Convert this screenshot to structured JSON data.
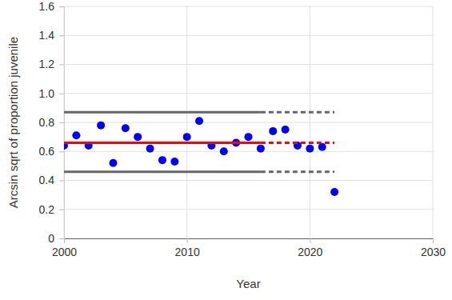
{
  "chart_data": {
    "type": "scatter",
    "x_label": "Year",
    "y_label": "Arcsin sqrt of proportion juvenile",
    "xlim": [
      2000,
      2030
    ],
    "xticks": [
      2000,
      2010,
      2020,
      2030
    ],
    "ylim": [
      0,
      1.6
    ],
    "yticks": [
      0,
      0.2,
      0.4,
      0.6,
      0.8,
      {
        "value": 1,
        "label": "1.0"
      },
      1.2,
      1.4,
      1.6
    ],
    "grid": true,
    "series": [
      {
        "type": "scatter",
        "color": "#0000ff",
        "marker": "circle",
        "x": [
          2000,
          2001,
          2002,
          2003,
          2004,
          2005,
          2006,
          2007,
          2008,
          2009,
          2010,
          2011,
          2012,
          2013,
          2014,
          2015,
          2016,
          2017,
          2018,
          2019,
          2020,
          2021,
          2022
        ],
        "values": [
          0.64,
          0.71,
          0.64,
          0.78,
          0.52,
          0.76,
          0.7,
          0.62,
          0.54,
          0.53,
          0.7,
          0.81,
          0.64,
          0.6,
          0.66,
          0.7,
          0.62,
          0.74,
          0.75,
          0.64,
          0.62,
          0.63,
          0.32
        ]
      },
      {
        "type": "line",
        "color": "#ff0000",
        "line_style": "solid",
        "x": [
          2000,
          2016
        ],
        "values": [
          0.66,
          0.66
        ]
      },
      {
        "type": "line",
        "color": "#ff0000",
        "line_style": "dashed",
        "x": [
          2016,
          2022
        ],
        "values": [
          0.66,
          0.66
        ]
      },
      {
        "type": "line",
        "color": "#666666",
        "line_style": "solid",
        "x": [
          2000,
          2016
        ],
        "values": [
          0.87,
          0.87
        ]
      },
      {
        "type": "line",
        "color": "#666666",
        "line_style": "dashed",
        "x": [
          2016,
          2022
        ],
        "values": [
          0.87,
          0.87
        ]
      },
      {
        "type": "line",
        "color": "#666666",
        "line_style": "solid",
        "x": [
          2000,
          2016
        ],
        "values": [
          0.46,
          0.46
        ]
      },
      {
        "type": "line",
        "color": "#666666",
        "line_style": "dashed",
        "x": [
          2016,
          2022
        ],
        "values": [
          0.46,
          0.46
        ]
      }
    ]
  }
}
